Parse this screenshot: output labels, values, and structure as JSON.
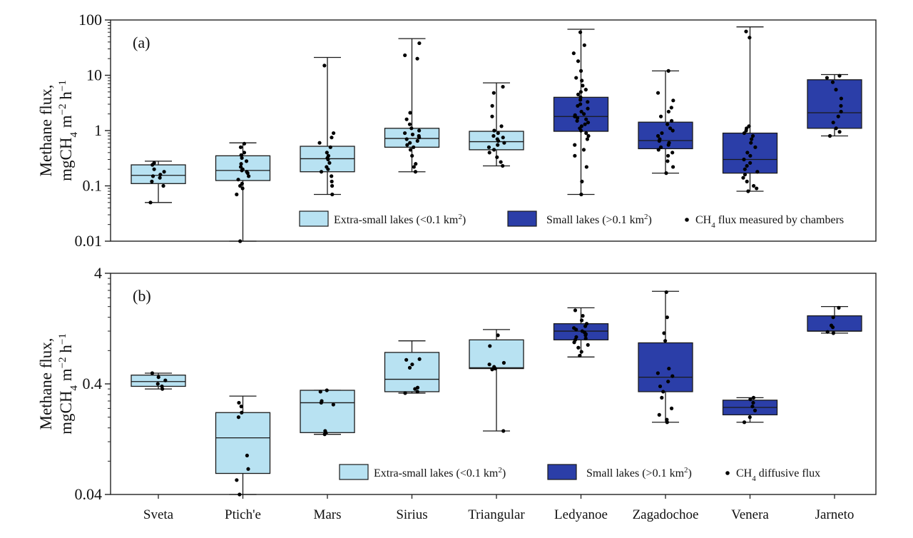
{
  "chart_data": [
    {
      "type": "box",
      "panel_label": "(a)",
      "ylabel_line1": "Methane flux,",
      "ylabel_line2": "mgCH",
      "ylabel_sub": "4",
      "ylabel_line2b": " m",
      "ylabel_sup1": "−2",
      "ylabel_line2c": " h",
      "ylabel_sup2": "−1",
      "yscale": "log",
      "ylim": [
        0.01,
        100
      ],
      "yticks": [
        0.01,
        0.1,
        1,
        10,
        100
      ],
      "ytick_labels": [
        "0.01",
        "0.1",
        "1",
        "10",
        "100"
      ],
      "legend": {
        "placement": "bottom-right",
        "xs_label": "Extra-small lakes (<0.1 km",
        "xs_sup": "2",
        "xs_close": ")",
        "s_label": "Small lakes (>0.1 km",
        "s_sup": "2",
        "s_close": ")",
        "dot_pre": "CH",
        "dot_sub": "4",
        "dot_post": " flux measured by chambers"
      },
      "boxes": [
        {
          "category": "Sveta",
          "group": "extra-small",
          "whisker_low": 0.05,
          "q1": 0.11,
          "median": 0.155,
          "q3": 0.24,
          "whisker_high": 0.28,
          "points": [
            0.05,
            0.1,
            0.12,
            0.14,
            0.15,
            0.16,
            0.18,
            0.2,
            0.24,
            0.26
          ]
        },
        {
          "category": "Ptich'e",
          "group": "extra-small",
          "whisker_low": 0.01,
          "q1": 0.125,
          "median": 0.19,
          "q3": 0.35,
          "whisker_high": 0.6,
          "points": [
            0.01,
            0.07,
            0.09,
            0.1,
            0.11,
            0.13,
            0.15,
            0.17,
            0.18,
            0.19,
            0.2,
            0.22,
            0.25,
            0.28,
            0.32,
            0.36,
            0.4,
            0.5,
            0.58
          ]
        },
        {
          "category": "Mars",
          "group": "extra-small",
          "whisker_low": 0.07,
          "q1": 0.18,
          "median": 0.31,
          "q3": 0.52,
          "whisker_high": 21,
          "points": [
            0.07,
            0.1,
            0.12,
            0.15,
            0.18,
            0.2,
            0.22,
            0.26,
            0.3,
            0.32,
            0.35,
            0.4,
            0.5,
            0.6,
            0.75,
            0.9,
            15
          ]
        },
        {
          "category": "Sirius",
          "group": "extra-small",
          "whisker_low": 0.18,
          "q1": 0.5,
          "median": 0.72,
          "q3": 1.1,
          "whisker_high": 46,
          "points": [
            0.18,
            0.22,
            0.25,
            0.35,
            0.45,
            0.5,
            0.55,
            0.6,
            0.65,
            0.7,
            0.75,
            0.8,
            0.85,
            0.9,
            1.0,
            1.1,
            1.3,
            1.6,
            2.1,
            20,
            23,
            38
          ]
        },
        {
          "category": "Triangular",
          "group": "extra-small",
          "whisker_low": 0.23,
          "q1": 0.45,
          "median": 0.63,
          "q3": 0.97,
          "whisker_high": 7.3,
          "points": [
            0.23,
            0.27,
            0.33,
            0.4,
            0.45,
            0.5,
            0.55,
            0.6,
            0.65,
            0.7,
            0.75,
            0.8,
            0.9,
            1.0,
            1.2,
            1.8,
            2.8,
            4.8,
            6.2
          ]
        },
        {
          "category": "Ledyanoe",
          "group": "small",
          "whisker_low": 0.07,
          "q1": 0.97,
          "median": 1.8,
          "q3": 4.0,
          "whisker_high": 68,
          "points": [
            0.07,
            0.12,
            0.22,
            0.35,
            0.45,
            0.55,
            0.7,
            0.8,
            0.9,
            1.0,
            1.1,
            1.2,
            1.3,
            1.4,
            1.5,
            1.6,
            1.7,
            1.8,
            1.9,
            2.0,
            2.2,
            2.5,
            2.8,
            3.0,
            3.3,
            3.6,
            4.0,
            4.5,
            5.0,
            5.5,
            6.5,
            8.0,
            9.0,
            12,
            18,
            25,
            35,
            60
          ]
        },
        {
          "category": "Zagadochoe",
          "group": "small",
          "whisker_low": 0.17,
          "q1": 0.47,
          "median": 0.66,
          "q3": 1.42,
          "whisker_high": 12,
          "points": [
            0.17,
            0.22,
            0.28,
            0.35,
            0.4,
            0.45,
            0.5,
            0.55,
            0.6,
            0.65,
            0.7,
            0.8,
            0.9,
            1.0,
            1.1,
            1.3,
            1.5,
            1.8,
            2.2,
            2.6,
            3.5,
            4.8,
            12
          ]
        },
        {
          "category": "Venera",
          "group": "small",
          "whisker_low": 0.08,
          "q1": 0.17,
          "median": 0.3,
          "q3": 0.9,
          "whisker_high": 75,
          "points": [
            0.08,
            0.09,
            0.1,
            0.12,
            0.14,
            0.16,
            0.18,
            0.2,
            0.23,
            0.26,
            0.3,
            0.35,
            0.4,
            0.5,
            0.6,
            0.7,
            0.8,
            0.9,
            1.0,
            1.1,
            1.2,
            48,
            62
          ]
        },
        {
          "category": "Jarneto",
          "group": "small",
          "whisker_low": 0.8,
          "q1": 1.1,
          "median": 2.1,
          "q3": 8.3,
          "whisker_high": 10.3,
          "points": [
            0.8,
            0.95,
            1.1,
            1.4,
            1.8,
            2.2,
            2.8,
            3.8,
            5.5,
            7.5,
            9.0,
            9.8
          ]
        }
      ]
    },
    {
      "type": "box",
      "panel_label": "(b)",
      "ylabel_line1": "Methane flux,",
      "ylabel_line2": "mgCH",
      "ylabel_sub": "4",
      "ylabel_line2b": " m",
      "ylabel_sup1": "−2",
      "ylabel_line2c": " h",
      "ylabel_sup2": "−1",
      "yscale": "log",
      "ylim": [
        0.04,
        4
      ],
      "yticks": [
        0.04,
        0.4,
        4
      ],
      "ytick_labels": [
        "0.04",
        "0.4",
        "4"
      ],
      "legend": {
        "placement": "bottom-right",
        "xs_label": "Extra-small lakes (<0.1 km",
        "xs_sup": "2",
        "xs_close": ")",
        "s_label": "Small lakes (>0.1 km",
        "s_sup": "2",
        "s_close": ")",
        "dot_pre": "CH",
        "dot_sub": "4",
        "dot_post": " diffusive flux"
      },
      "boxes": [
        {
          "category": "Sveta",
          "group": "extra-small",
          "whisker_low": 0.36,
          "q1": 0.38,
          "median": 0.42,
          "q3": 0.48,
          "whisker_high": 0.5,
          "points": [
            0.36,
            0.38,
            0.4,
            0.43,
            0.46,
            0.5
          ]
        },
        {
          "category": "Ptich'e",
          "group": "extra-small",
          "whisker_low": 0.04,
          "q1": 0.062,
          "median": 0.13,
          "q3": 0.22,
          "whisker_high": 0.31,
          "points": [
            0.04,
            0.054,
            0.068,
            0.09,
            0.2,
            0.22,
            0.25,
            0.27
          ]
        },
        {
          "category": "Mars",
          "group": "extra-small",
          "whisker_low": 0.14,
          "q1": 0.145,
          "median": 0.27,
          "q3": 0.35,
          "whisker_high": 0.35,
          "points": [
            0.14,
            0.145,
            0.15,
            0.26,
            0.27,
            0.28,
            0.34,
            0.35
          ]
        },
        {
          "category": "Sirius",
          "group": "extra-small",
          "whisker_low": 0.33,
          "q1": 0.34,
          "median": 0.44,
          "q3": 0.77,
          "whisker_high": 0.98,
          "points": [
            0.33,
            0.34,
            0.36,
            0.37,
            0.56,
            0.6,
            0.66,
            0.67
          ]
        },
        {
          "category": "Triangular",
          "group": "extra-small",
          "whisker_low": 0.15,
          "q1": 0.55,
          "median": 0.56,
          "q3": 1.0,
          "whisker_high": 1.24,
          "points": [
            0.15,
            0.54,
            0.55,
            0.57,
            0.6,
            0.62,
            0.88,
            1.1
          ]
        },
        {
          "category": "Ledyanoe",
          "group": "small",
          "whisker_low": 0.7,
          "q1": 1.0,
          "median": 1.2,
          "q3": 1.4,
          "whisker_high": 1.95,
          "points": [
            0.72,
            0.78,
            0.85,
            0.9,
            0.95,
            1.0,
            1.03,
            1.06,
            1.1,
            1.13,
            1.17,
            1.2,
            1.24,
            1.28,
            1.33,
            1.4,
            1.5,
            1.65,
            1.85
          ]
        },
        {
          "category": "Zagadochoe",
          "group": "small",
          "whisker_low": 0.18,
          "q1": 0.34,
          "median": 0.46,
          "q3": 0.94,
          "whisker_high": 2.75,
          "points": [
            0.18,
            0.19,
            0.21,
            0.24,
            0.3,
            0.34,
            0.38,
            0.42,
            0.47,
            0.5,
            0.55,
            0.98,
            1.15,
            1.6,
            2.7
          ]
        },
        {
          "category": "Venera",
          "group": "small",
          "whisker_low": 0.18,
          "q1": 0.21,
          "median": 0.245,
          "q3": 0.285,
          "whisker_high": 0.3,
          "points": [
            0.18,
            0.2,
            0.23,
            0.25,
            0.27,
            0.29,
            0.3
          ]
        },
        {
          "category": "Jarneto",
          "group": "small",
          "whisker_low": 1.15,
          "q1": 1.2,
          "median": 1.2,
          "q3": 1.65,
          "whisker_high": 2.0,
          "points": [
            1.15,
            1.18,
            1.3,
            1.35,
            1.6,
            1.95
          ]
        }
      ]
    }
  ],
  "categories": [
    "Sveta",
    "Ptich'e",
    "Mars",
    "Sirius",
    "Triangular",
    "Ledyanoe",
    "Zagadochoe",
    "Venera",
    "Jarneto"
  ],
  "colors": {
    "extra_small_fill": "#b8e2f2",
    "small_fill": "#2b3ea8",
    "stroke": "#1a1a1a",
    "point": "#000000"
  }
}
